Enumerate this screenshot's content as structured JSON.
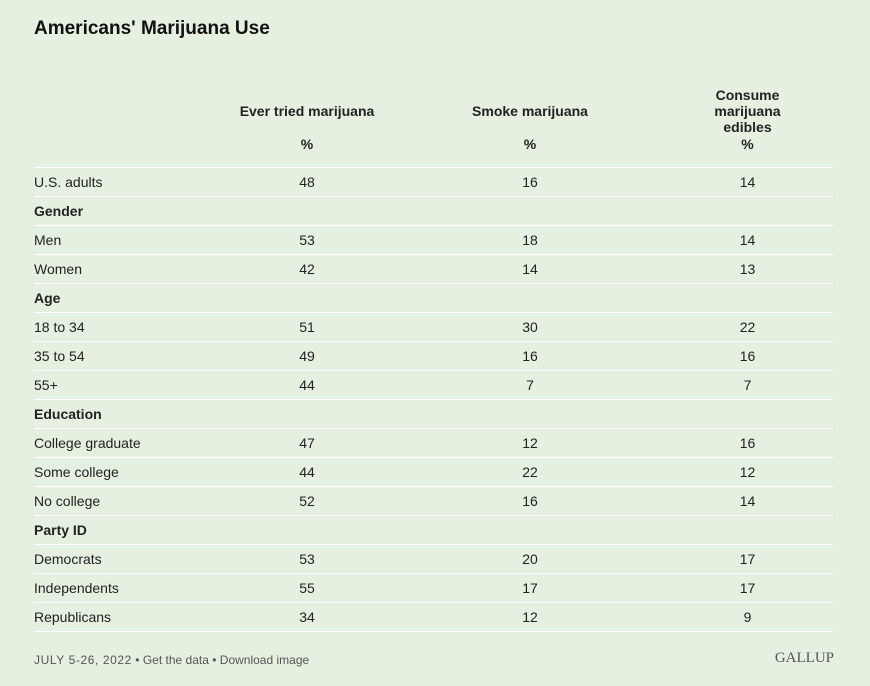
{
  "title": "Americans' Marijuana Use",
  "columns": [
    "Ever tried marijuana",
    "Smoke marijuana",
    "Consume marijuana edibles"
  ],
  "unit": "%",
  "rows": [
    {
      "label": "U.S. adults",
      "values": [
        "48",
        "16",
        "14"
      ]
    },
    {
      "label": "Gender",
      "group": true
    },
    {
      "label": "Men",
      "values": [
        "53",
        "18",
        "14"
      ]
    },
    {
      "label": "Women",
      "values": [
        "42",
        "14",
        "13"
      ]
    },
    {
      "label": "Age",
      "group": true
    },
    {
      "label": "18 to 34",
      "values": [
        "51",
        "30",
        "22"
      ]
    },
    {
      "label": "35 to 54",
      "values": [
        "49",
        "16",
        "16"
      ]
    },
    {
      "label": "55+",
      "values": [
        "44",
        "7",
        "7"
      ]
    },
    {
      "label": "Education",
      "group": true
    },
    {
      "label": "College graduate",
      "values": [
        "47",
        "12",
        "16"
      ]
    },
    {
      "label": "Some college",
      "values": [
        "44",
        "22",
        "12"
      ]
    },
    {
      "label": "No college",
      "values": [
        "52",
        "16",
        "14"
      ]
    },
    {
      "label": "Party ID",
      "group": true
    },
    {
      "label": "Democrats",
      "values": [
        "53",
        "20",
        "17"
      ]
    },
    {
      "label": "Independents",
      "values": [
        "55",
        "17",
        "17"
      ]
    },
    {
      "label": "Republicans",
      "values": [
        "34",
        "12",
        "9"
      ]
    }
  ],
  "footer": {
    "date": "JULY 5-26, 2022",
    "sep": "•",
    "get_data": "Get the data",
    "download": "Download image"
  },
  "logo": "GALLUP"
}
